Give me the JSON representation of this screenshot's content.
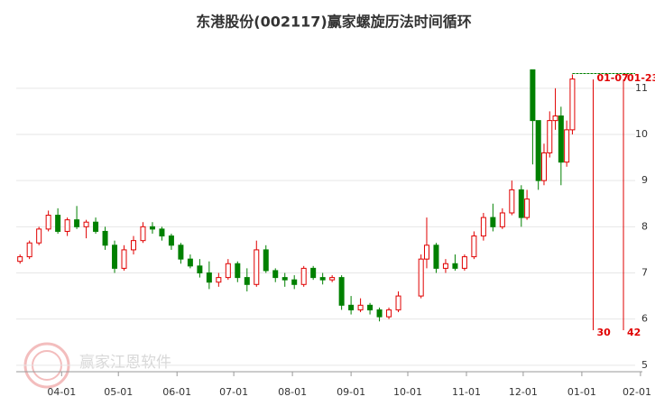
{
  "chart_data": {
    "type": "candlestick",
    "title": "东港股份(002117)赢家螺旋历法时间循环",
    "watermark": "赢家江恩软件",
    "x": [
      "03-10",
      "03-15",
      "03-20",
      "03-25",
      "03-30",
      "04-04",
      "04-09",
      "04-14",
      "04-19",
      "04-24",
      "04-29",
      "05-04",
      "05-09",
      "05-14",
      "05-19",
      "05-24",
      "05-29",
      "06-03",
      "06-08",
      "06-13",
      "06-18",
      "06-23",
      "06-28",
      "07-03",
      "07-08",
      "07-13",
      "07-18",
      "07-23",
      "07-28",
      "08-02",
      "08-07",
      "08-12",
      "08-17",
      "08-22",
      "08-27",
      "09-01",
      "09-06",
      "09-11",
      "09-16",
      "09-21",
      "09-26",
      "10-08",
      "10-11",
      "10-16",
      "10-21",
      "10-26",
      "10-31",
      "11-05",
      "11-10",
      "11-15",
      "11-20",
      "11-25",
      "11-30",
      "12-03",
      "12-06",
      "12-09",
      "12-12",
      "12-15",
      "12-18",
      "12-21",
      "12-24",
      "12-27"
    ],
    "open": [
      7.25,
      7.35,
      7.65,
      7.95,
      8.25,
      7.9,
      8.15,
      8.0,
      8.1,
      7.9,
      7.6,
      7.1,
      7.5,
      7.7,
      8.0,
      7.95,
      7.8,
      7.6,
      7.3,
      7.15,
      7.0,
      6.8,
      6.9,
      7.2,
      6.9,
      6.75,
      7.5,
      7.05,
      6.9,
      6.85,
      6.75,
      7.1,
      6.9,
      6.85,
      6.9,
      6.3,
      6.2,
      6.3,
      6.2,
      6.05,
      6.2,
      6.5,
      7.3,
      7.6,
      7.1,
      7.2,
      7.1,
      7.35,
      7.8,
      8.2,
      8.0,
      8.3,
      8.8,
      8.2,
      11.4,
      10.3,
      9.0,
      9.6,
      10.3,
      10.4,
      9.4,
      10.1
    ],
    "high": [
      7.4,
      7.7,
      8.0,
      8.35,
      8.4,
      8.2,
      8.45,
      8.15,
      8.2,
      8.0,
      7.7,
      7.6,
      7.8,
      8.1,
      8.1,
      8.0,
      7.85,
      7.65,
      7.4,
      7.3,
      7.25,
      7.0,
      7.3,
      7.25,
      7.1,
      7.7,
      7.6,
      7.1,
      7.0,
      6.95,
      7.15,
      7.15,
      7.0,
      6.95,
      6.95,
      6.5,
      6.45,
      6.35,
      6.25,
      6.25,
      6.6,
      7.4,
      8.2,
      7.65,
      7.3,
      7.4,
      7.4,
      7.9,
      8.3,
      8.5,
      8.4,
      9.0,
      8.9,
      8.8,
      11.4,
      10.3,
      9.8,
      10.5,
      11.0,
      10.6,
      10.3,
      11.3
    ],
    "low": [
      7.2,
      7.3,
      7.6,
      7.9,
      7.85,
      7.8,
      7.95,
      7.75,
      7.85,
      7.5,
      7.0,
      7.05,
      7.4,
      7.65,
      7.85,
      7.7,
      7.5,
      7.2,
      7.1,
      6.9,
      6.65,
      6.7,
      6.85,
      6.8,
      6.6,
      6.7,
      7.0,
      6.8,
      6.7,
      6.65,
      6.7,
      6.85,
      6.75,
      6.8,
      6.2,
      6.1,
      6.15,
      6.1,
      5.95,
      6.0,
      6.15,
      6.45,
      7.1,
      7.0,
      7.0,
      7.05,
      7.05,
      7.3,
      7.7,
      7.9,
      7.95,
      8.25,
      8.0,
      8.15,
      9.35,
      8.8,
      8.9,
      9.5,
      10.1,
      8.9,
      9.3,
      10.0
    ],
    "close": [
      7.35,
      7.65,
      7.95,
      8.25,
      7.9,
      8.15,
      8.0,
      8.1,
      7.9,
      7.6,
      7.1,
      7.5,
      7.7,
      8.0,
      7.95,
      7.8,
      7.6,
      7.3,
      7.15,
      7.0,
      6.8,
      6.9,
      7.2,
      6.9,
      6.75,
      7.5,
      7.05,
      6.9,
      6.85,
      6.75,
      7.1,
      6.9,
      6.85,
      6.9,
      6.3,
      6.2,
      6.3,
      6.2,
      6.05,
      6.2,
      6.5,
      7.3,
      7.6,
      7.1,
      7.2,
      7.1,
      7.35,
      7.8,
      8.2,
      8.0,
      8.3,
      8.8,
      8.2,
      8.6,
      10.3,
      9.0,
      9.6,
      10.3,
      10.4,
      9.4,
      10.1,
      11.2
    ],
    "up_color": "#e00000",
    "down_color": "#008000",
    "xlim": [
      "03-08",
      "02-02"
    ],
    "xticks": [
      "04-01",
      "05-01",
      "06-01",
      "07-01",
      "08-01",
      "09-01",
      "10-01",
      "11-01",
      "12-01",
      "01-01",
      "02-01"
    ],
    "ylim": [
      4.86,
      11.7
    ],
    "yticks": [
      5,
      6,
      7,
      8,
      9,
      10,
      11
    ],
    "grid": true,
    "hline": 11.32,
    "hline_color": "#008000",
    "cycles": [
      {
        "date": "01-07",
        "count": 30
      },
      {
        "date": "01-23",
        "count": 42
      }
    ],
    "cycle_color": "#e00000"
  }
}
